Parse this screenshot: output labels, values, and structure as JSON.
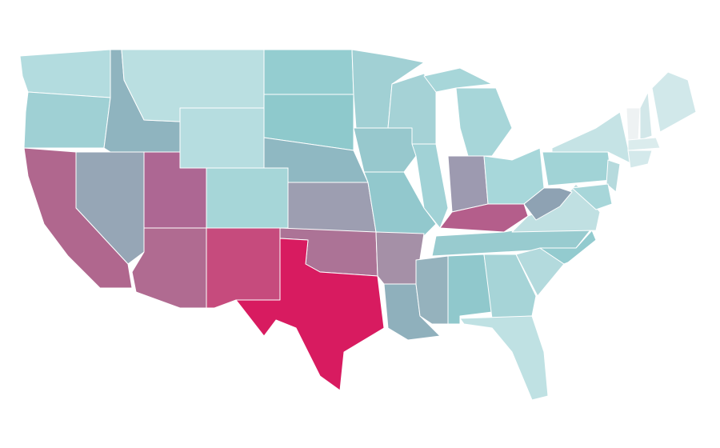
{
  "map": {
    "regions": [
      {
        "color": "#b3dcdf"
      },
      {
        "color": "#9fd0d4"
      },
      {
        "color": "#8fb4bf"
      },
      {
        "color": "#badfe1"
      },
      {
        "color": "#b6dde0"
      },
      {
        "color": "#94cdd0"
      },
      {
        "color": "#8ec9cc"
      },
      {
        "color": "#8fb8c2"
      },
      {
        "color": "#96a6b6"
      },
      {
        "color": "#b0678e"
      },
      {
        "color": "#ad6793"
      },
      {
        "color": "#b06b91"
      },
      {
        "color": "#a6d6d8"
      },
      {
        "color": "#c64b7d"
      },
      {
        "color": "#9d9eb1"
      },
      {
        "color": "#ac7396"
      },
      {
        "color": "#d81b60"
      },
      {
        "color": "#a1d0d4"
      },
      {
        "color": "#97c8cd"
      },
      {
        "color": "#92c8cd"
      },
      {
        "color": "#a590a7"
      },
      {
        "color": "#8fb0bc"
      },
      {
        "color": "#a5d2d6"
      },
      {
        "color": "#a1d2d6"
      },
      {
        "color": "#a7d6d9"
      },
      {
        "color": "#a7d6d9"
      },
      {
        "color": "#9d9ab0"
      },
      {
        "color": "#a7d7da"
      },
      {
        "color": "#b45e8b"
      },
      {
        "color": "#98cbcf"
      },
      {
        "color": "#95b2bd"
      },
      {
        "color": "#90c8cc"
      },
      {
        "color": "#a6d4d7"
      },
      {
        "color": "#bfe1e3"
      },
      {
        "color": "#b3dadd"
      },
      {
        "color": "#93cbcf"
      },
      {
        "color": "#c0e0e2"
      },
      {
        "color": "#8ea2b3"
      },
      {
        "color": "#a1d3d6"
      },
      {
        "color": "#c5e3e5"
      },
      {
        "color": "#eef2f3"
      },
      {
        "color": "#d2e7e9"
      },
      {
        "color": "#d1e8ea"
      },
      {
        "color": "#dbeced"
      },
      {
        "color": "#d4e9eb"
      },
      {
        "color": "#b6dadd"
      },
      {
        "color": "#a7d6d9"
      }
    ]
  }
}
